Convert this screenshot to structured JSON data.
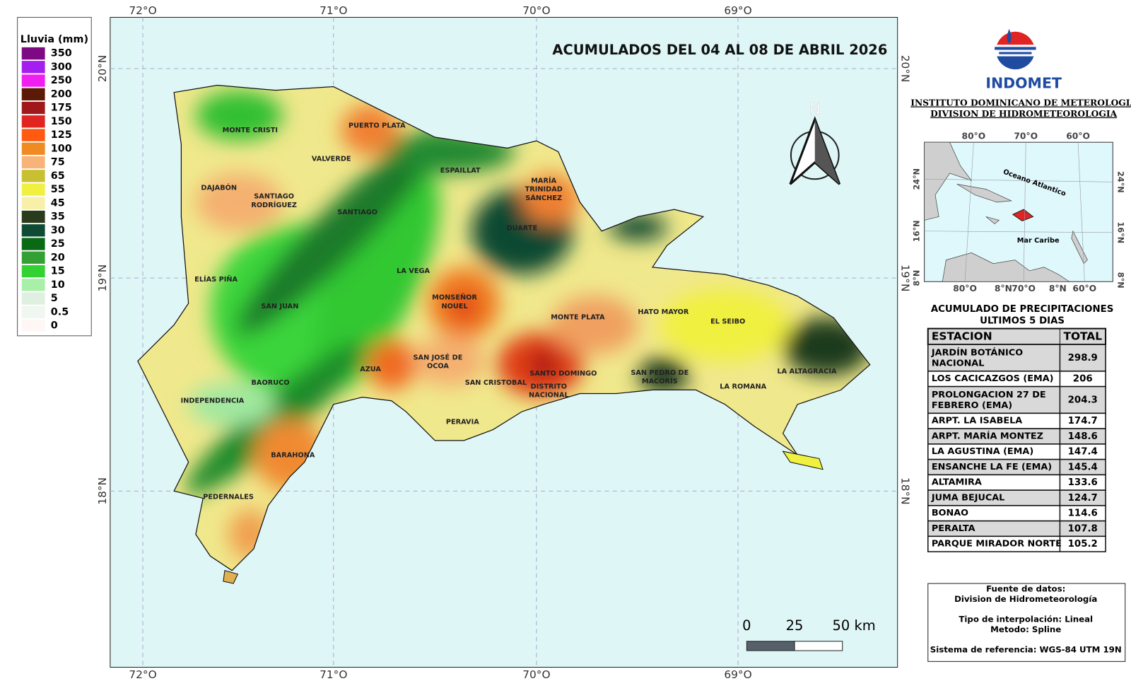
{
  "legend": {
    "title": "Lluvia (mm)",
    "items": [
      {
        "label": "350",
        "color": "#7d0a82"
      },
      {
        "label": "300",
        "color": "#a41ef0"
      },
      {
        "label": "250",
        "color": "#f01ef0"
      },
      {
        "label": "200",
        "color": "#5a1a05"
      },
      {
        "label": "175",
        "color": "#a0181a"
      },
      {
        "label": "150",
        "color": "#e02420"
      },
      {
        "label": "125",
        "color": "#ff5a10"
      },
      {
        "label": "100",
        "color": "#f08a22"
      },
      {
        "label": "75",
        "color": "#f8b478"
      },
      {
        "label": "65",
        "color": "#c8c032"
      },
      {
        "label": "55",
        "color": "#f0f040"
      },
      {
        "label": "45",
        "color": "#f8f0a8"
      },
      {
        "label": "35",
        "color": "#2a3a1c"
      },
      {
        "label": "30",
        "color": "#0f4a34"
      },
      {
        "label": "25",
        "color": "#0a6a14"
      },
      {
        "label": "20",
        "color": "#32a032"
      },
      {
        "label": "15",
        "color": "#32d232"
      },
      {
        "label": "10",
        "color": "#a8f0a8"
      },
      {
        "label": "5",
        "color": "#e0f0e0"
      },
      {
        "label": "0.5",
        "color": "#f0f6f0"
      },
      {
        "label": "0",
        "color": "#fff6f6"
      }
    ]
  },
  "map": {
    "title": "ACUMULADOS DEL 04 AL 08 DE ABRIL 2026",
    "lon_labels": [
      "72°O",
      "71°O",
      "70°O",
      "69°O"
    ],
    "lat_labels": [
      "20°N",
      "19°N",
      "18°N"
    ],
    "north": "N",
    "scale_labels": [
      "0",
      "25",
      "50 km"
    ],
    "places": [
      {
        "lines": [
          "MONTE CRISTI"
        ]
      },
      {
        "lines": [
          "PUERTO PLATA"
        ]
      },
      {
        "lines": [
          "VALVERDE"
        ]
      },
      {
        "lines": [
          "ESPAILLAT"
        ]
      },
      {
        "lines": [
          "DAJABÓN"
        ]
      },
      {
        "lines": [
          "SANTIAGO",
          "RODRÍGUEZ"
        ]
      },
      {
        "lines": [
          "SANTIAGO"
        ]
      },
      {
        "lines": [
          "MARÍA",
          "TRINIDAD",
          "SÁNCHEZ"
        ]
      },
      {
        "lines": [
          "DUARTE"
        ]
      },
      {
        "lines": [
          "ELÍAS PIÑA"
        ]
      },
      {
        "lines": [
          "LA VEGA"
        ]
      },
      {
        "lines": [
          "MONSEÑOR",
          "NOUEL"
        ]
      },
      {
        "lines": [
          "SAN JUAN"
        ]
      },
      {
        "lines": [
          "MONTE PLATA"
        ]
      },
      {
        "lines": [
          "HATO MAYOR"
        ]
      },
      {
        "lines": [
          "EL SEIBO"
        ]
      },
      {
        "lines": [
          "SAN JOSÉ DE",
          "OCOA"
        ]
      },
      {
        "lines": [
          "AZUA"
        ]
      },
      {
        "lines": [
          "SANTO DOMINGO"
        ]
      },
      {
        "lines": [
          "SAN CRISTOBAL"
        ]
      },
      {
        "lines": [
          "DISTRITO",
          "NACIONAL"
        ]
      },
      {
        "lines": [
          "SAN PEDRO DE",
          "MACORÍS"
        ]
      },
      {
        "lines": [
          "LA ROMANA"
        ]
      },
      {
        "lines": [
          "LA ALTAGRACIA"
        ]
      },
      {
        "lines": [
          "BAORUCO"
        ]
      },
      {
        "lines": [
          "INDEPENDENCIA"
        ]
      },
      {
        "lines": [
          "PERAVIA"
        ]
      },
      {
        "lines": [
          "BARAHONA"
        ]
      },
      {
        "lines": [
          "PEDERNALES"
        ]
      }
    ]
  },
  "header": {
    "org": "INDOMET",
    "line1": "INSTITUTO DOMINICANO DE METEROLOGIA",
    "line2": "DIVISION DE HIDROMETEOROLOGIA"
  },
  "inset": {
    "top_labels": [
      "80°O",
      "70°O",
      "60°O"
    ],
    "bottom_labels": [
      "80°O",
      "8°N",
      "70°O",
      "8°N",
      "60°O"
    ],
    "left_labels": [
      "24°N",
      "16°N",
      "8°N"
    ],
    "right_labels": [
      "24°N",
      "16°N",
      "8°N"
    ],
    "ocean": "Oceano Atlantico",
    "sea": "Mar Caribe"
  },
  "table": {
    "title": [
      "ACUMULADO DE PRECIPITACIONES",
      "ULTIMOS 5 DIAS"
    ],
    "columns": [
      "ESTACION",
      "TOTAL"
    ],
    "rows": [
      [
        "JARDÍN BOTÁNICO NACIONAL",
        "298.9"
      ],
      [
        "LOS CACICAZGOS (EMA)",
        "206"
      ],
      [
        "PROLONGACION 27 DE FEBRERO (EMA)",
        "204.3"
      ],
      [
        "ARPT. LA ISABELA",
        "174.7"
      ],
      [
        "ARPT. MARÍA MONTEZ",
        "148.6"
      ],
      [
        "LA AGUSTINA (EMA)",
        "147.4"
      ],
      [
        "ENSANCHE LA FE (EMA)",
        "145.4"
      ],
      [
        "ALTAMIRA",
        "133.6"
      ],
      [
        "JUMA BEJUCAL",
        "124.7"
      ],
      [
        "BONAO",
        "114.6"
      ],
      [
        "PERALTA",
        "107.8"
      ],
      [
        "PARQUE MIRADOR NORTE",
        "105.2"
      ]
    ]
  },
  "info": {
    "lines": [
      "Fuente de datos:",
      "Division de Hidrometeorología",
      "Tipo de interpolación: Lineal",
      "Metodo: Spline",
      "Sistema de referencia: WGS-84 UTM 19N"
    ]
  }
}
